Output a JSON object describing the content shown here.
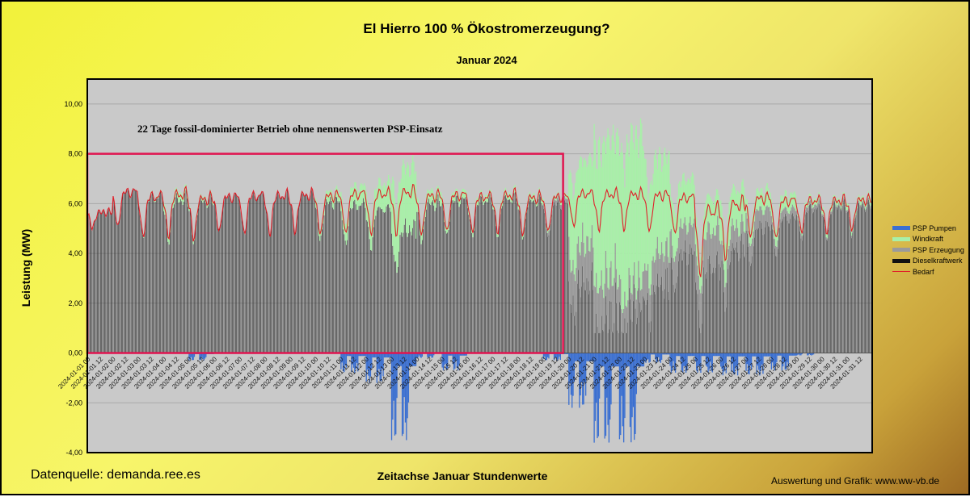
{
  "chart_data": {
    "type": "bar",
    "title": "El Hierro 100 % Ökostromerzeugung?",
    "subtitle": "Januar 2024",
    "xlabel": "Zeitachse Januar Stundenwerte",
    "ylabel": "Leistung (MW)",
    "ylim": [
      -4,
      11
    ],
    "y_ticks": [
      "-4,00",
      "-2,00",
      "0,00",
      "2,00",
      "4,00",
      "6,00",
      "8,00",
      "10,00"
    ],
    "y_tick_values": [
      -4,
      -2,
      0,
      2,
      4,
      6,
      8,
      10
    ],
    "x_tick_labels": [
      "2024-01-01 00",
      "2024-01-01 12",
      "2024-01-02 00",
      "2024-01-02 12",
      "2024-01-03 00",
      "2024-01-03 12",
      "2024-01-04 00",
      "2024-01-04 12",
      "2024-01-05 00",
      "2024-01-05 12",
      "2024-01-06 00",
      "2024-01-06 12",
      "2024-01-07 00",
      "2024-01-07 12",
      "2024-01-08 00",
      "2024-01-08 12",
      "2024-01-09 00",
      "2024-01-09 12",
      "2024-01-10 00",
      "2024-01-10 12",
      "2024-01-11 00",
      "2024-01-11 12",
      "2024-01-12 00",
      "2024-01-12 12",
      "2024-01-13 00",
      "2024-01-13 12",
      "2024-01-14 00",
      "2024-01-14 12",
      "2024-01-15 00",
      "2024-01-15 12",
      "2024-01-16 00",
      "2024-01-16 12",
      "2024-01-17 00",
      "2024-01-17 12",
      "2024-01-18 00",
      "2024-01-18 12",
      "2024-01-19 00",
      "2024-01-19 12",
      "2024-01-20 00",
      "2024-01-20 12",
      "2024-01-21 00",
      "2024-01-21 12",
      "2024-01-22 00",
      "2024-01-22 12",
      "2024-01-23 00",
      "2024-01-23 12",
      "2024-01-24 00",
      "2024-01-24 12",
      "2024-01-25 00",
      "2024-01-25 12",
      "2024-01-26 00",
      "2024-01-26 12",
      "2024-01-27 00",
      "2024-01-27 12",
      "2024-01-28 00",
      "2024-01-28 12",
      "2024-01-29 00",
      "2024-01-29 12",
      "2024-01-30 00",
      "2024-01-30 12",
      "2024-01-31 00",
      "2024-01-31 12"
    ],
    "grid": true,
    "legend_position": "right",
    "series": [
      {
        "name": "PSP Pumpen",
        "color": "#3a6fd1"
      },
      {
        "name": "Windkraft",
        "color": "#a8f0a8"
      },
      {
        "name": "PSP Erzeugung",
        "color": "#9a9a9a"
      },
      {
        "name": "Dieselkraftwerk",
        "color": "#111111"
      },
      {
        "name": "Bedarf",
        "color": "#e0202a"
      }
    ],
    "daily_summary": {
      "days": [
        "2024-01-01",
        "2024-01-02",
        "2024-01-03",
        "2024-01-04",
        "2024-01-05",
        "2024-01-06",
        "2024-01-07",
        "2024-01-08",
        "2024-01-09",
        "2024-01-10",
        "2024-01-11",
        "2024-01-12",
        "2024-01-13",
        "2024-01-14",
        "2024-01-15",
        "2024-01-16",
        "2024-01-17",
        "2024-01-18",
        "2024-01-19",
        "2024-01-20",
        "2024-01-21",
        "2024-01-22",
        "2024-01-23",
        "2024-01-24",
        "2024-01-25",
        "2024-01-26",
        "2024-01-27",
        "2024-01-28",
        "2024-01-29",
        "2024-01-30",
        "2024-01-31"
      ],
      "bedarf_min": [
        5.0,
        5.0,
        4.6,
        4.6,
        4.5,
        4.8,
        4.7,
        4.7,
        4.8,
        4.7,
        4.7,
        4.7,
        4.7,
        4.7,
        4.8,
        4.8,
        4.8,
        4.7,
        4.8,
        5.0,
        4.9,
        4.9,
        4.8,
        4.7,
        3.0,
        3.7,
        4.6,
        4.5,
        4.8,
        4.8,
        4.9
      ],
      "bedarf_max": [
        5.9,
        7.0,
        6.9,
        7.0,
        6.8,
        6.8,
        6.9,
        6.9,
        6.9,
        6.9,
        7.0,
        7.0,
        7.1,
        6.9,
        6.9,
        6.8,
        6.9,
        6.8,
        6.8,
        6.9,
        6.9,
        6.9,
        6.9,
        6.8,
        6.7,
        6.8,
        6.8,
        6.7,
        6.6,
        6.6,
        6.6
      ],
      "wind_max": [
        0.0,
        0.0,
        0.1,
        0.4,
        0.2,
        0.0,
        0.0,
        0.0,
        0.0,
        0.5,
        0.9,
        1.2,
        3.0,
        0.6,
        0.4,
        0.3,
        0.3,
        0.3,
        0.2,
        4.0,
        6.5,
        7.0,
        4.5,
        2.2,
        1.6,
        1.8,
        0.9,
        0.7,
        0.3,
        0.3,
        0.3
      ],
      "psp_erzeugung_max": [
        0.0,
        0.0,
        0.0,
        0.0,
        0.0,
        0.0,
        0.0,
        0.0,
        0.0,
        0.0,
        0.0,
        0.0,
        0.0,
        0.0,
        0.0,
        0.0,
        0.0,
        0.0,
        0.2,
        1.8,
        1.9,
        1.1,
        1.5,
        1.3,
        1.6,
        1.0,
        0.8,
        0.4,
        0.2,
        0.1,
        0.1
      ],
      "psp_pumpen_min": [
        0.0,
        0.0,
        0.0,
        0.0,
        -0.3,
        0.0,
        0.0,
        0.0,
        0.0,
        0.0,
        -0.8,
        -1.2,
        -3.5,
        -0.2,
        -0.7,
        0.0,
        0.0,
        0.0,
        -0.3,
        -2.2,
        -3.6,
        -3.6,
        -0.4,
        -0.8,
        -0.8,
        -0.9,
        -0.9,
        -0.7,
        -0.1,
        0.0,
        0.0
      ]
    },
    "annotation": {
      "text": "22 Tage fossil-dominierter Betrieb ohne nennenswerten PSP-Einsatz",
      "box_x_start": "2024-01-01 00",
      "box_x_end": "2024-01-23 00",
      "box_y_range": [
        0,
        8
      ],
      "box_color": "#e01450"
    }
  },
  "footer": {
    "source": "Datenquelle: demanda.ree.es",
    "credit": "Auswertung und Grafik: www.ww-vb.de"
  }
}
